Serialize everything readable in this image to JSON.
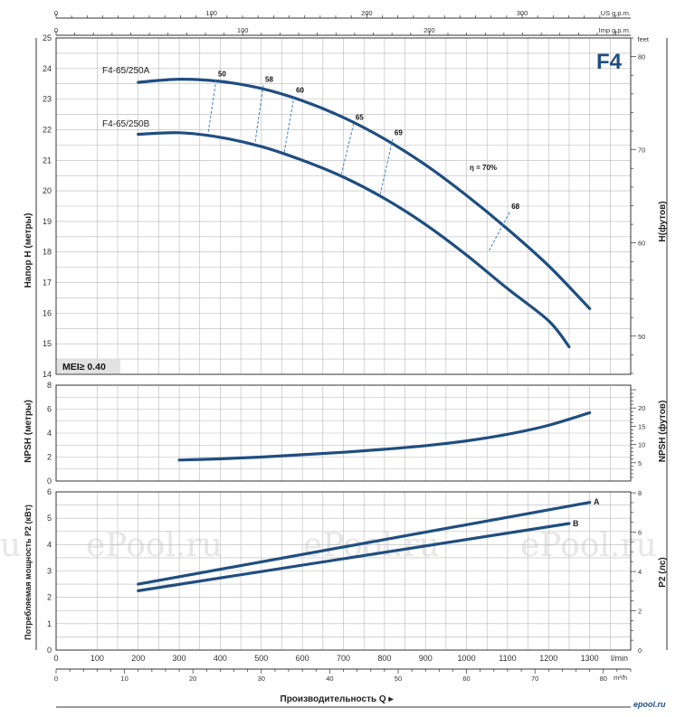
{
  "chart_data": [
    {
      "type": "line",
      "id": "head",
      "ylabel": "Напор Н (метры)",
      "y2label": "Н(футов)",
      "badge": "F4",
      "mei_label": "MEI≥ 0.40",
      "y2_unit": "feet",
      "ylim": [
        14,
        25
      ],
      "y2lim": [
        45.9,
        82.0
      ],
      "yticks": [
        14,
        15,
        16,
        17,
        18,
        19,
        20,
        21,
        22,
        23,
        24,
        25
      ],
      "y2ticks": [
        50,
        60,
        70,
        80
      ],
      "series": [
        {
          "name": "F4-65/250A",
          "x": [
            200,
            300,
            400,
            500,
            600,
            700,
            800,
            900,
            1000,
            1100,
            1200,
            1300
          ],
          "y": [
            23.55,
            23.65,
            23.58,
            23.35,
            22.95,
            22.4,
            21.7,
            20.85,
            19.85,
            18.75,
            17.55,
            16.15
          ]
        },
        {
          "name": "F4-65/250B",
          "x": [
            200,
            300,
            400,
            500,
            600,
            700,
            800,
            900,
            1000,
            1100,
            1200,
            1250
          ],
          "y": [
            21.85,
            21.9,
            21.75,
            21.45,
            21.0,
            20.45,
            19.75,
            18.9,
            17.9,
            16.8,
            15.75,
            14.9
          ]
        }
      ],
      "efficiency_lines": [
        {
          "label": "50",
          "xA": 390,
          "yA": 23.63,
          "xB": 370,
          "yB": 21.85
        },
        {
          "label": "58",
          "xA": 505,
          "yA": 23.45,
          "xB": 485,
          "yB": 21.6
        },
        {
          "label": "60",
          "xA": 580,
          "yA": 23.1,
          "xB": 555,
          "yB": 21.2
        },
        {
          "label": "65",
          "xA": 725,
          "yA": 22.2,
          "xB": 695,
          "yB": 20.55
        },
        {
          "label": "69",
          "xA": 820,
          "yA": 21.7,
          "xB": 790,
          "yB": 19.9
        },
        {
          "label": "68",
          "xA": 1105,
          "yA": 19.3,
          "xB": 1055,
          "yB": 18.05
        }
      ],
      "eta_label": "η = 70%"
    },
    {
      "type": "line",
      "id": "npsh",
      "ylabel": "NPSH (метры)",
      "y2label": "NPSH (футов)",
      "ylim": [
        0,
        8
      ],
      "yticks": [
        0,
        2,
        4,
        6,
        8
      ],
      "y2ticks": [
        5,
        10,
        15,
        20
      ],
      "series": [
        {
          "name": "",
          "x": [
            300,
            400,
            500,
            600,
            700,
            800,
            900,
            1000,
            1100,
            1200,
            1300
          ],
          "y": [
            1.75,
            1.85,
            2.0,
            2.2,
            2.4,
            2.65,
            2.95,
            3.35,
            3.9,
            4.65,
            5.7
          ]
        }
      ]
    },
    {
      "type": "line",
      "id": "power",
      "ylabel": "Потребляемая мощность Р2 (кВт)",
      "y2label": "Р2 (лс)",
      "ylim": [
        0,
        6
      ],
      "yticks": [
        0,
        1,
        2,
        3,
        4,
        5,
        6
      ],
      "y2ticks": [
        0,
        2,
        4,
        6,
        8
      ],
      "series": [
        {
          "name": "A",
          "x": [
            200,
            1300
          ],
          "y": [
            2.5,
            5.6
          ]
        },
        {
          "name": "B",
          "x": [
            200,
            1250
          ],
          "y": [
            2.25,
            4.8
          ]
        }
      ]
    }
  ],
  "x_axes": {
    "lmin_unit": "l/min",
    "lmin_ticks": [
      0,
      100,
      200,
      300,
      400,
      500,
      600,
      700,
      800,
      900,
      1000,
      1100,
      1200,
      1300
    ],
    "m3h_unit": "m³/h",
    "m3h_ticks": [
      0,
      10,
      20,
      30,
      40,
      50,
      60,
      70,
      80
    ],
    "usgpm_unit": "US g.p.m.",
    "usgpm_ticks": [
      0,
      100,
      200,
      300
    ],
    "impgpm_unit": "Imp g.p.m.",
    "impgpm_ticks": [
      0,
      100,
      200
    ],
    "xlabel": "Производительность Q ▸"
  },
  "watermark": {
    "text": "ePool.ru",
    "fragment_left": "u",
    "corner": "epool.ru"
  },
  "colors": {
    "curve": "#1f4e80",
    "grid": "#b8b8b8",
    "frame": "#333333"
  }
}
